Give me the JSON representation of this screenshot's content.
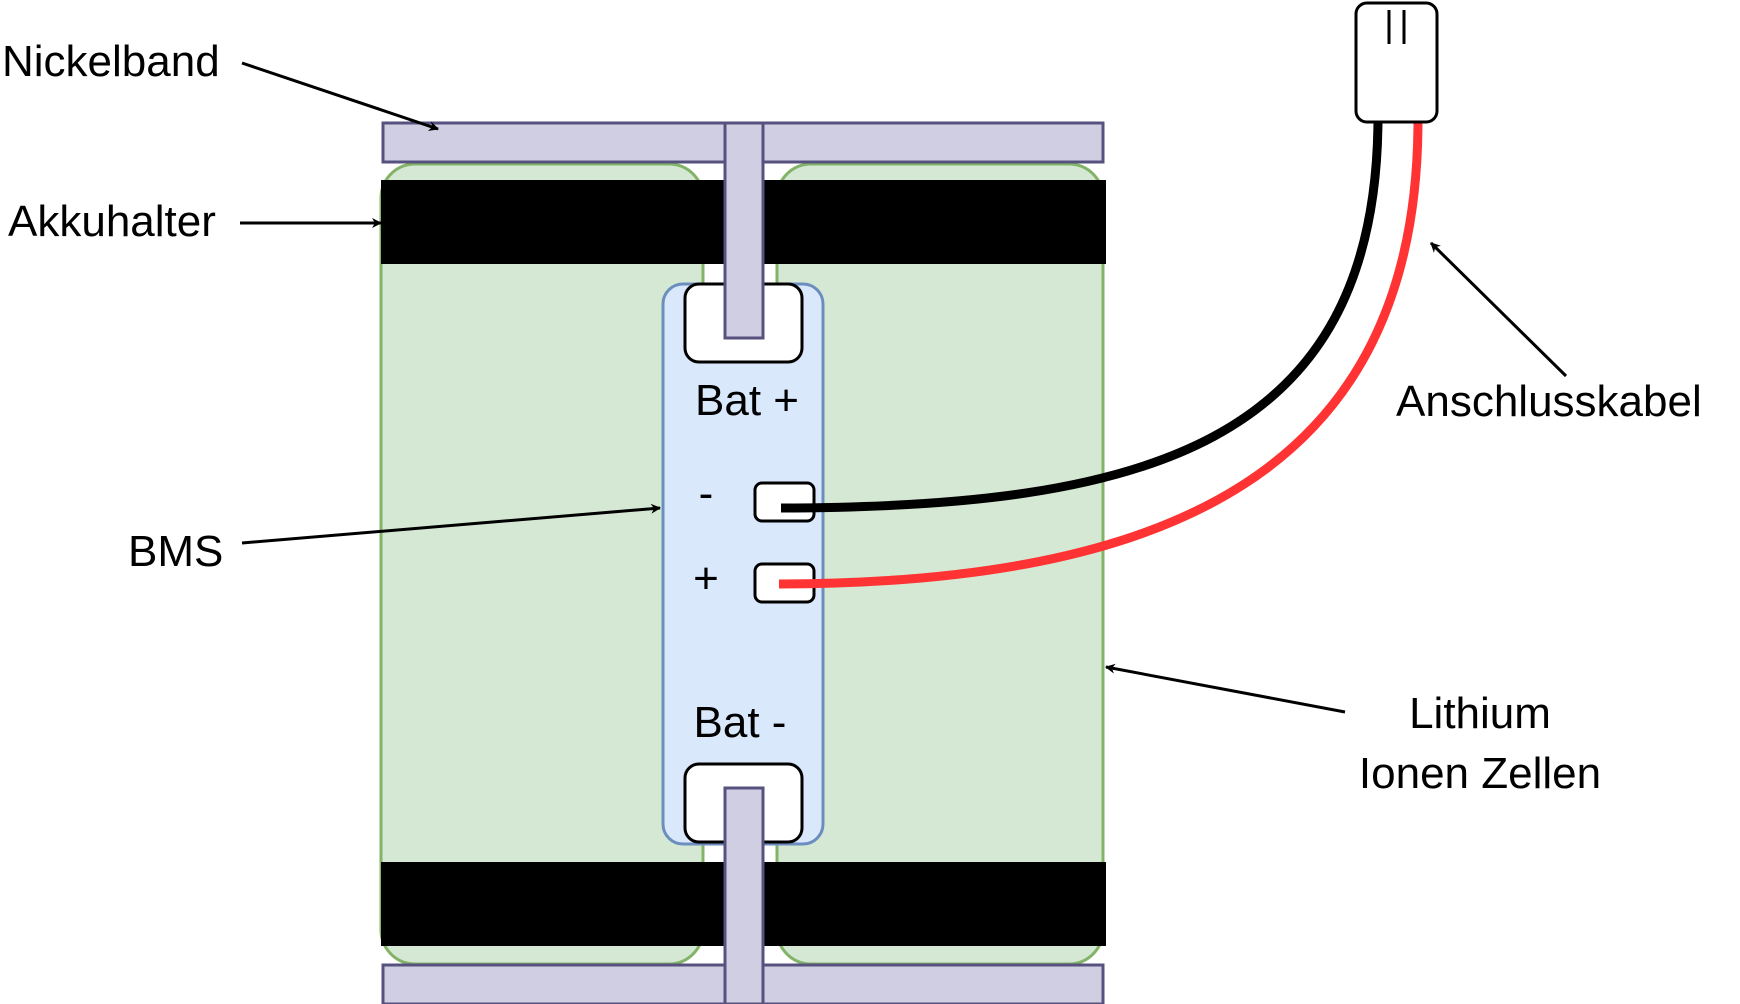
{
  "labels": {
    "nickelband": "Nickelband",
    "akkuhalter": "Akkuhalter",
    "bms": "BMS",
    "anschlusskabel": "Anschlusskabel",
    "lithium_line1": "Lithium",
    "lithium_line2": "Ionen Zellen"
  },
  "bms_board": {
    "bat_plus": "Bat +",
    "bat_minus": "Bat -",
    "pad_minus": "-",
    "pad_plus": "+"
  },
  "colors": {
    "cell_fill": "#d5e8d4",
    "cell_stroke": "#82b366",
    "holder": "#000000",
    "nickel_fill": "#d0cee2",
    "nickel_stroke": "#56517e",
    "bms_fill": "#dae8fc",
    "bms_stroke": "#6c8ebf",
    "wire_negative": "#000000",
    "wire_positive": "#ff3333"
  }
}
